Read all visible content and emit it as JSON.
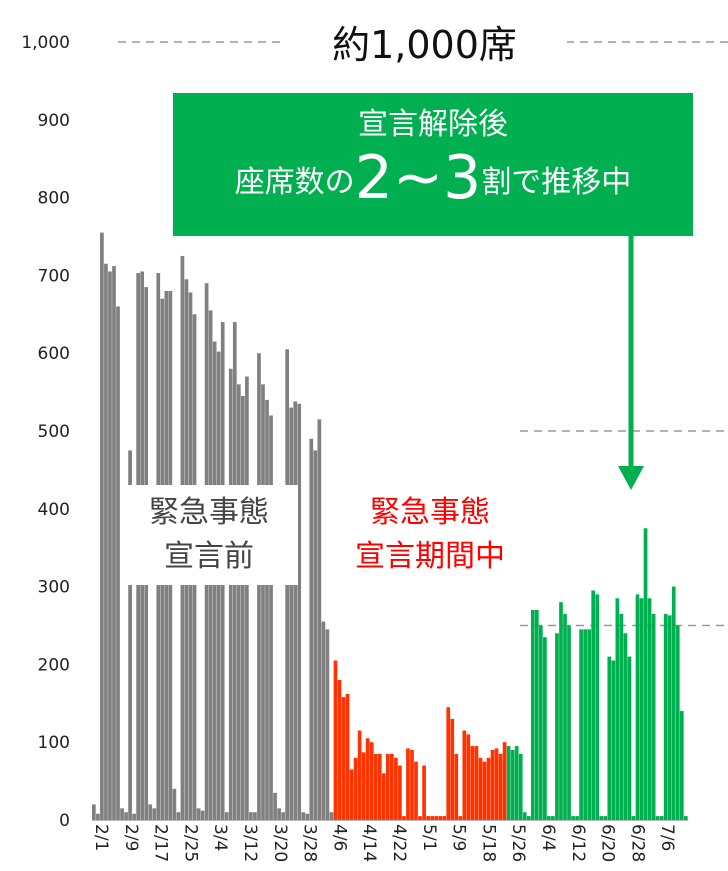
{
  "annotations": {
    "capacity_label": "約1,000席",
    "callout_line1": "宣言解除後",
    "callout_line2_pre": "座席数の",
    "callout_line2_big": "2~3",
    "callout_line2_post": "割で推移中",
    "label_pre_line1": "緊急事態",
    "label_pre_line2": "宣言前",
    "label_during_line1": "緊急事態",
    "label_during_line2": "宣言期間中"
  },
  "colors": {
    "pre": "#808080",
    "during": "#ff3300",
    "after": "#00b050",
    "callout": "#00b050"
  },
  "chart_data": {
    "type": "bar",
    "ylim": [
      0,
      1000
    ],
    "yticks": [
      "0",
      "100",
      "200",
      "300",
      "400",
      "500",
      "600",
      "700",
      "800",
      "900",
      "1,000"
    ],
    "xtick_labels": [
      "2/1",
      "2/9",
      "2/17",
      "2/25",
      "3/4",
      "3/12",
      "3/20",
      "3/28",
      "4/6",
      "4/14",
      "4/22",
      "5/1",
      "5/9",
      "5/18",
      "5/26",
      "6/4",
      "6/12",
      "6/20",
      "6/28",
      "7/6"
    ],
    "reference_lines": [
      1000,
      500,
      250
    ],
    "periods": [
      {
        "name": "緊急事態宣言前",
        "values": [
          20,
          8,
          755,
          715,
          705,
          712,
          660,
          15,
          10,
          475,
          8,
          703,
          705,
          685,
          20,
          15,
          703,
          670,
          680,
          680,
          40,
          10,
          725,
          695,
          678,
          650,
          15,
          12,
          690,
          655,
          615,
          602,
          640,
          10,
          580,
          640,
          560,
          545,
          570,
          10,
          10,
          600,
          560,
          540,
          520,
          35,
          15,
          10,
          605,
          530,
          538,
          535,
          10,
          8,
          490,
          475,
          515,
          255,
          245,
          10
        ]
      },
      {
        "name": "緊急事態宣言期間中",
        "values": [
          205,
          180,
          158,
          162,
          65,
          80,
          115,
          87,
          105,
          100,
          85,
          85,
          60,
          85,
          85,
          80,
          70,
          5,
          92,
          90,
          75,
          5,
          70,
          5,
          5,
          5,
          5,
          5,
          145,
          130,
          85,
          5,
          115,
          110,
          95,
          95,
          80,
          75,
          80,
          90,
          92,
          85,
          100
        ]
      },
      {
        "name": "宣言解除後",
        "values": [
          95,
          90,
          95,
          85,
          10,
          5,
          270,
          270,
          250,
          235,
          5,
          5,
          240,
          280,
          265,
          250,
          5,
          5,
          245,
          245,
          245,
          295,
          290,
          5,
          5,
          210,
          205,
          285,
          265,
          240,
          210,
          5,
          290,
          285,
          375,
          285,
          265,
          5,
          5,
          265,
          263,
          300,
          250,
          140,
          5
        ]
      }
    ]
  }
}
